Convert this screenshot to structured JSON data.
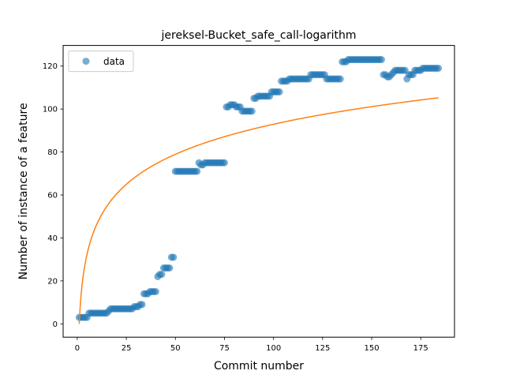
{
  "chart_data": {
    "type": "scatter",
    "title": "jereksel-Bucket_safe_call-logarithm",
    "xlabel": "Commit number",
    "ylabel": "Number of instance of a feature",
    "xlim": [
      -7.2,
      192.2
    ],
    "ylim": [
      -6.2,
      129.6
    ],
    "xticks": [
      0,
      25,
      50,
      75,
      100,
      125,
      150,
      175
    ],
    "yticks": [
      0,
      20,
      40,
      60,
      80,
      100,
      120
    ],
    "grid": false,
    "legend": {
      "placement": "top-left",
      "entries": [
        "data"
      ]
    },
    "colors": {
      "scatter": "#1f77b4",
      "fit": "#ff7f0e"
    },
    "series": [
      {
        "name": "data",
        "kind": "scatter",
        "color": "#1f77b4",
        "points": [
          [
            1,
            3
          ],
          [
            2,
            3
          ],
          [
            3,
            3
          ],
          [
            4,
            3
          ],
          [
            5,
            3
          ],
          [
            6,
            5
          ],
          [
            7,
            5
          ],
          [
            8,
            5
          ],
          [
            9,
            5
          ],
          [
            10,
            5
          ],
          [
            11,
            5
          ],
          [
            12,
            5
          ],
          [
            13,
            5
          ],
          [
            14,
            5
          ],
          [
            15,
            5
          ],
          [
            16,
            6
          ],
          [
            17,
            7
          ],
          [
            18,
            7
          ],
          [
            19,
            7
          ],
          [
            20,
            7
          ],
          [
            21,
            7
          ],
          [
            22,
            7
          ],
          [
            23,
            7
          ],
          [
            24,
            7
          ],
          [
            25,
            7
          ],
          [
            26,
            7
          ],
          [
            27,
            7
          ],
          [
            28,
            7
          ],
          [
            29,
            8
          ],
          [
            30,
            8
          ],
          [
            31,
            8
          ],
          [
            32,
            9
          ],
          [
            33,
            9
          ],
          [
            34,
            14
          ],
          [
            35,
            14
          ],
          [
            36,
            14
          ],
          [
            37,
            15
          ],
          [
            38,
            15
          ],
          [
            39,
            15
          ],
          [
            40,
            15
          ],
          [
            41,
            22
          ],
          [
            42,
            23
          ],
          [
            43,
            23
          ],
          [
            44,
            26
          ],
          [
            45,
            26
          ],
          [
            46,
            26
          ],
          [
            47,
            26
          ],
          [
            48,
            31
          ],
          [
            49,
            31
          ],
          [
            50,
            71
          ],
          [
            51,
            71
          ],
          [
            52,
            71
          ],
          [
            53,
            71
          ],
          [
            54,
            71
          ],
          [
            55,
            71
          ],
          [
            56,
            71
          ],
          [
            57,
            71
          ],
          [
            58,
            71
          ],
          [
            59,
            71
          ],
          [
            60,
            71
          ],
          [
            61,
            71
          ],
          [
            62,
            75
          ],
          [
            63,
            74
          ],
          [
            64,
            74
          ],
          [
            65,
            75
          ],
          [
            66,
            75
          ],
          [
            67,
            75
          ],
          [
            68,
            75
          ],
          [
            69,
            75
          ],
          [
            70,
            75
          ],
          [
            71,
            75
          ],
          [
            72,
            75
          ],
          [
            73,
            75
          ],
          [
            74,
            75
          ],
          [
            75,
            75
          ],
          [
            76,
            101
          ],
          [
            77,
            101
          ],
          [
            78,
            102
          ],
          [
            79,
            102
          ],
          [
            80,
            102
          ],
          [
            81,
            101
          ],
          [
            82,
            101
          ],
          [
            83,
            101
          ],
          [
            84,
            99
          ],
          [
            85,
            99
          ],
          [
            86,
            99
          ],
          [
            87,
            99
          ],
          [
            88,
            99
          ],
          [
            89,
            99
          ],
          [
            90,
            105
          ],
          [
            91,
            105
          ],
          [
            92,
            106
          ],
          [
            93,
            106
          ],
          [
            94,
            106
          ],
          [
            95,
            106
          ],
          [
            96,
            106
          ],
          [
            97,
            106
          ],
          [
            98,
            106
          ],
          [
            99,
            108
          ],
          [
            100,
            108
          ],
          [
            101,
            108
          ],
          [
            102,
            108
          ],
          [
            103,
            108
          ],
          [
            104,
            113
          ],
          [
            105,
            113
          ],
          [
            106,
            113
          ],
          [
            107,
            113
          ],
          [
            108,
            114
          ],
          [
            109,
            114
          ],
          [
            110,
            114
          ],
          [
            111,
            114
          ],
          [
            112,
            114
          ],
          [
            113,
            114
          ],
          [
            114,
            114
          ],
          [
            115,
            114
          ],
          [
            116,
            114
          ],
          [
            117,
            114
          ],
          [
            118,
            114
          ],
          [
            119,
            116
          ],
          [
            120,
            116
          ],
          [
            121,
            116
          ],
          [
            122,
            116
          ],
          [
            123,
            116
          ],
          [
            124,
            116
          ],
          [
            125,
            116
          ],
          [
            126,
            116
          ],
          [
            127,
            114
          ],
          [
            128,
            114
          ],
          [
            129,
            114
          ],
          [
            130,
            114
          ],
          [
            131,
            114
          ],
          [
            132,
            114
          ],
          [
            133,
            114
          ],
          [
            134,
            114
          ],
          [
            135,
            122
          ],
          [
            136,
            122
          ],
          [
            137,
            122
          ],
          [
            138,
            123
          ],
          [
            139,
            123
          ],
          [
            140,
            123
          ],
          [
            141,
            123
          ],
          [
            142,
            123
          ],
          [
            143,
            123
          ],
          [
            144,
            123
          ],
          [
            145,
            123
          ],
          [
            146,
            123
          ],
          [
            147,
            123
          ],
          [
            148,
            123
          ],
          [
            149,
            123
          ],
          [
            150,
            123
          ],
          [
            151,
            123
          ],
          [
            152,
            123
          ],
          [
            153,
            123
          ],
          [
            154,
            123
          ],
          [
            155,
            123
          ],
          [
            156,
            116
          ],
          [
            157,
            116
          ],
          [
            158,
            115
          ],
          [
            159,
            115
          ],
          [
            160,
            116
          ],
          [
            161,
            117
          ],
          [
            162,
            118
          ],
          [
            163,
            118
          ],
          [
            164,
            118
          ],
          [
            165,
            118
          ],
          [
            166,
            118
          ],
          [
            167,
            118
          ],
          [
            168,
            114
          ],
          [
            169,
            116
          ],
          [
            170,
            116
          ],
          [
            171,
            116
          ],
          [
            172,
            118
          ],
          [
            173,
            118
          ],
          [
            174,
            118
          ],
          [
            175,
            118
          ],
          [
            176,
            119
          ],
          [
            177,
            119
          ],
          [
            178,
            119
          ],
          [
            179,
            119
          ],
          [
            180,
            119
          ],
          [
            181,
            119
          ],
          [
            182,
            119
          ],
          [
            183,
            119
          ],
          [
            184,
            119
          ]
        ]
      },
      {
        "kind": "line",
        "color": "#ff7f0e",
        "model": "logarithmic",
        "x_range": [
          1,
          184
        ],
        "coefficients": {
          "a": 20.18,
          "b": 0
        },
        "sampled": [
          [
            1,
            0
          ],
          [
            5,
            32.5
          ],
          [
            25,
            65
          ],
          [
            50,
            79
          ],
          [
            75,
            87
          ],
          [
            100,
            93
          ],
          [
            125,
            97.5
          ],
          [
            150,
            101
          ],
          [
            184,
            105
          ]
        ]
      }
    ]
  }
}
